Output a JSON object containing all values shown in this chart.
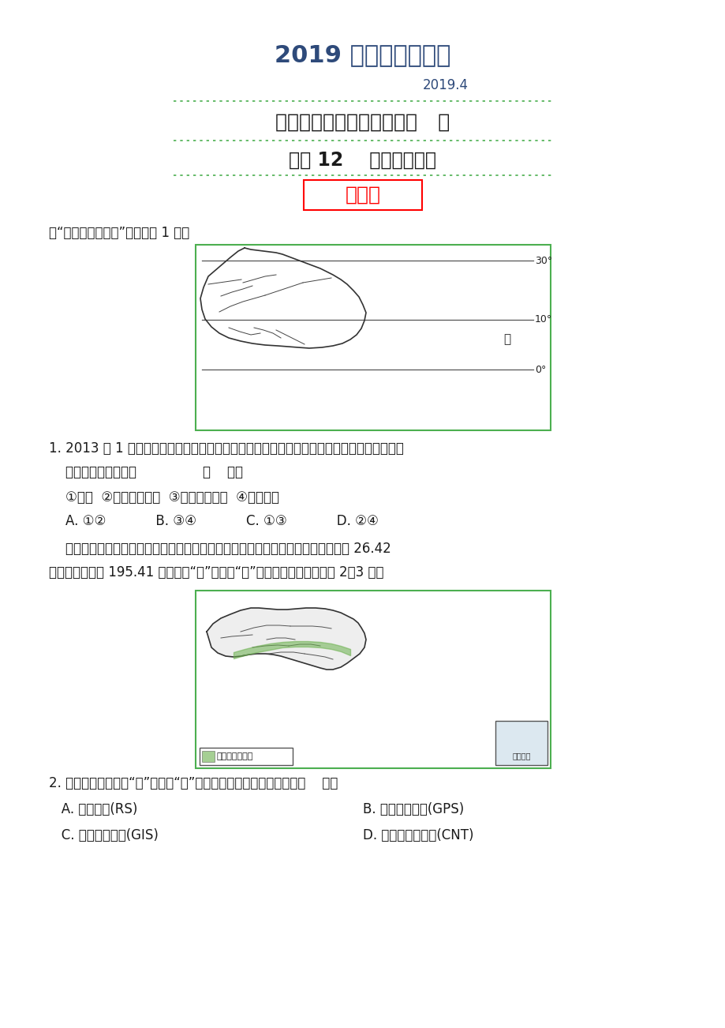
{
  "bg_color": "#ffffff",
  "title_main": "2019 版地理精品资料",
  "title_main_color": "#2e4a7a",
  "title_date": "2019.4",
  "title_date_color": "#2e4a7a",
  "subtitle1": "《寒假总动员》高三地理之   练",
  "subtitle2": "专题 12    地理信息技术",
  "box_label": "练一练",
  "box_label_color": "#ff0000",
  "box_border_color": "#ff0000",
  "section_line_color": "#4caf50",
  "q1_intro": "读“非洲部分地区图”，完成第 1 题。",
  "q1_text1": "1. 2013 年 1 月，甲处发生了海洋风暴潮灾害，造成了当地海岸地貌的显著变化。为了评估灾",
  "q1_text2": "    害损失，人们应采用                （    ）。",
  "q1_opts": "    ①遥感  ②全球定位系统  ③地理信息系统  ④数字地球",
  "q1_choices": "    A. ①②            B. ③④            C. ①③            D. ②④",
  "q2_intro1": "    兰州大学陈全功教授等人首次对中国南北分界线给出了定量、定位分析，最窄处约 26.42",
  "q2_intro2": "千米，最宽处约 195.41 千米，将“线”还原成“带”（如下图）。据此完成 2～3 题。",
  "q2_text": "2. 将中国南北分界由“线”还原成“带”，主要运用的地理信息技术是（    ）。",
  "q2_A": "   A. 遥感技术(RS)",
  "q2_B": "B. 全球定位系统(GPS)",
  "q2_C": "   C. 地理信息系统(GIS)",
  "q2_D": "D. 计算机网络技术(CNT)"
}
